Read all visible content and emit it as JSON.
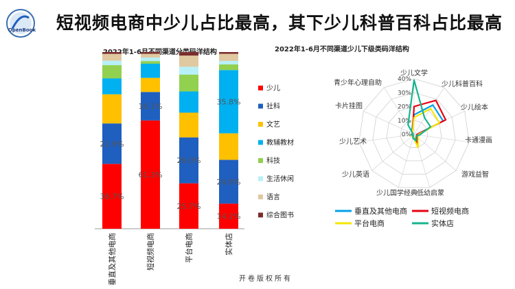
{
  "header": {
    "logo_text": "OpenBook",
    "title": "短视频电商中少儿占比最高，其下少儿科普百科占比最高"
  },
  "footer": {
    "text": "开卷版权所有"
  },
  "colors": {
    "少儿": "#ff0000",
    "社科": "#1f5fbf",
    "文艺": "#ffc000",
    "教辅教材": "#00b0f0",
    "科技": "#92d050",
    "生活休闲": "#b8f0f8",
    "语言": "#e0c8a0",
    "综合图书": "#7b2c2c"
  },
  "chart_data": [
    {
      "type": "bar",
      "stacked": true,
      "title": "2022年1-6月不同渠道分类码洋结构",
      "categories": [
        "垂直及其他电商",
        "短视频电商",
        "平台电商",
        "实体店"
      ],
      "series": [
        {
          "name": "少儿",
          "values": [
            36.7,
            61.3,
            25.7,
            14.2
          ]
        },
        {
          "name": "社科",
          "values": [
            22.9,
            16.1,
            26.0,
            24.8
          ]
        },
        {
          "name": "文艺",
          "values": [
            16.5,
            8.0,
            14.0,
            15.0
          ]
        },
        {
          "name": "教辅教材",
          "values": [
            9.0,
            8.0,
            12.0,
            35.8
          ]
        },
        {
          "name": "科技",
          "values": [
            7.5,
            1.5,
            9.5,
            3.2
          ]
        },
        {
          "name": "生活休闲",
          "values": [
            2.5,
            2.0,
            4.5,
            2.0
          ]
        },
        {
          "name": "语言",
          "values": [
            3.9,
            2.1,
            6.3,
            4.0
          ]
        },
        {
          "name": "综合图书",
          "values": [
            1.0,
            1.0,
            2.0,
            1.0
          ]
        }
      ],
      "data_labels": [
        {
          "series": "少儿",
          "values": [
            "36.7%",
            "61.3%",
            "25.7%",
            "14.2%"
          ]
        },
        {
          "series": "社科",
          "values": [
            "22.9%",
            "16.1%",
            "26.0%",
            "24.8%"
          ]
        },
        {
          "series": "教辅教材",
          "values": [
            "",
            "",
            "",
            "35.8%"
          ]
        }
      ],
      "ylim": [
        0,
        100
      ],
      "legend": "right"
    },
    {
      "type": "radar",
      "title": "2022年1-6月不同渠道少儿下级类码洋结构",
      "axes": [
        "少儿文学",
        "少儿科普百科",
        "少儿绘本",
        "卡通漫画",
        "游戏益智",
        "低幼启蒙",
        "少儿国学经典",
        "少儿英语",
        "少儿艺术",
        "卡片挂图",
        "青少年心理自助"
      ],
      "ticks": [
        "0%",
        "10%",
        "20%",
        "30%",
        "40%"
      ],
      "rmax": 40,
      "series": [
        {
          "name": "垂直及其他电商",
          "values": [
            14,
            25,
            23,
            2,
            3,
            5,
            2,
            1,
            2,
            1,
            3
          ]
        },
        {
          "name": "短视频电商",
          "values": [
            20,
            29,
            25,
            2,
            3,
            8,
            2,
            1,
            1,
            1,
            2
          ]
        },
        {
          "name": "平台电商",
          "values": [
            12,
            22,
            20,
            3,
            4,
            10,
            2,
            2,
            2,
            1,
            2
          ]
        },
        {
          "name": "实体店",
          "values": [
            39,
            14,
            13,
            4,
            2,
            5,
            3,
            1,
            2,
            1,
            8
          ]
        }
      ],
      "legend": "bottom"
    }
  ]
}
